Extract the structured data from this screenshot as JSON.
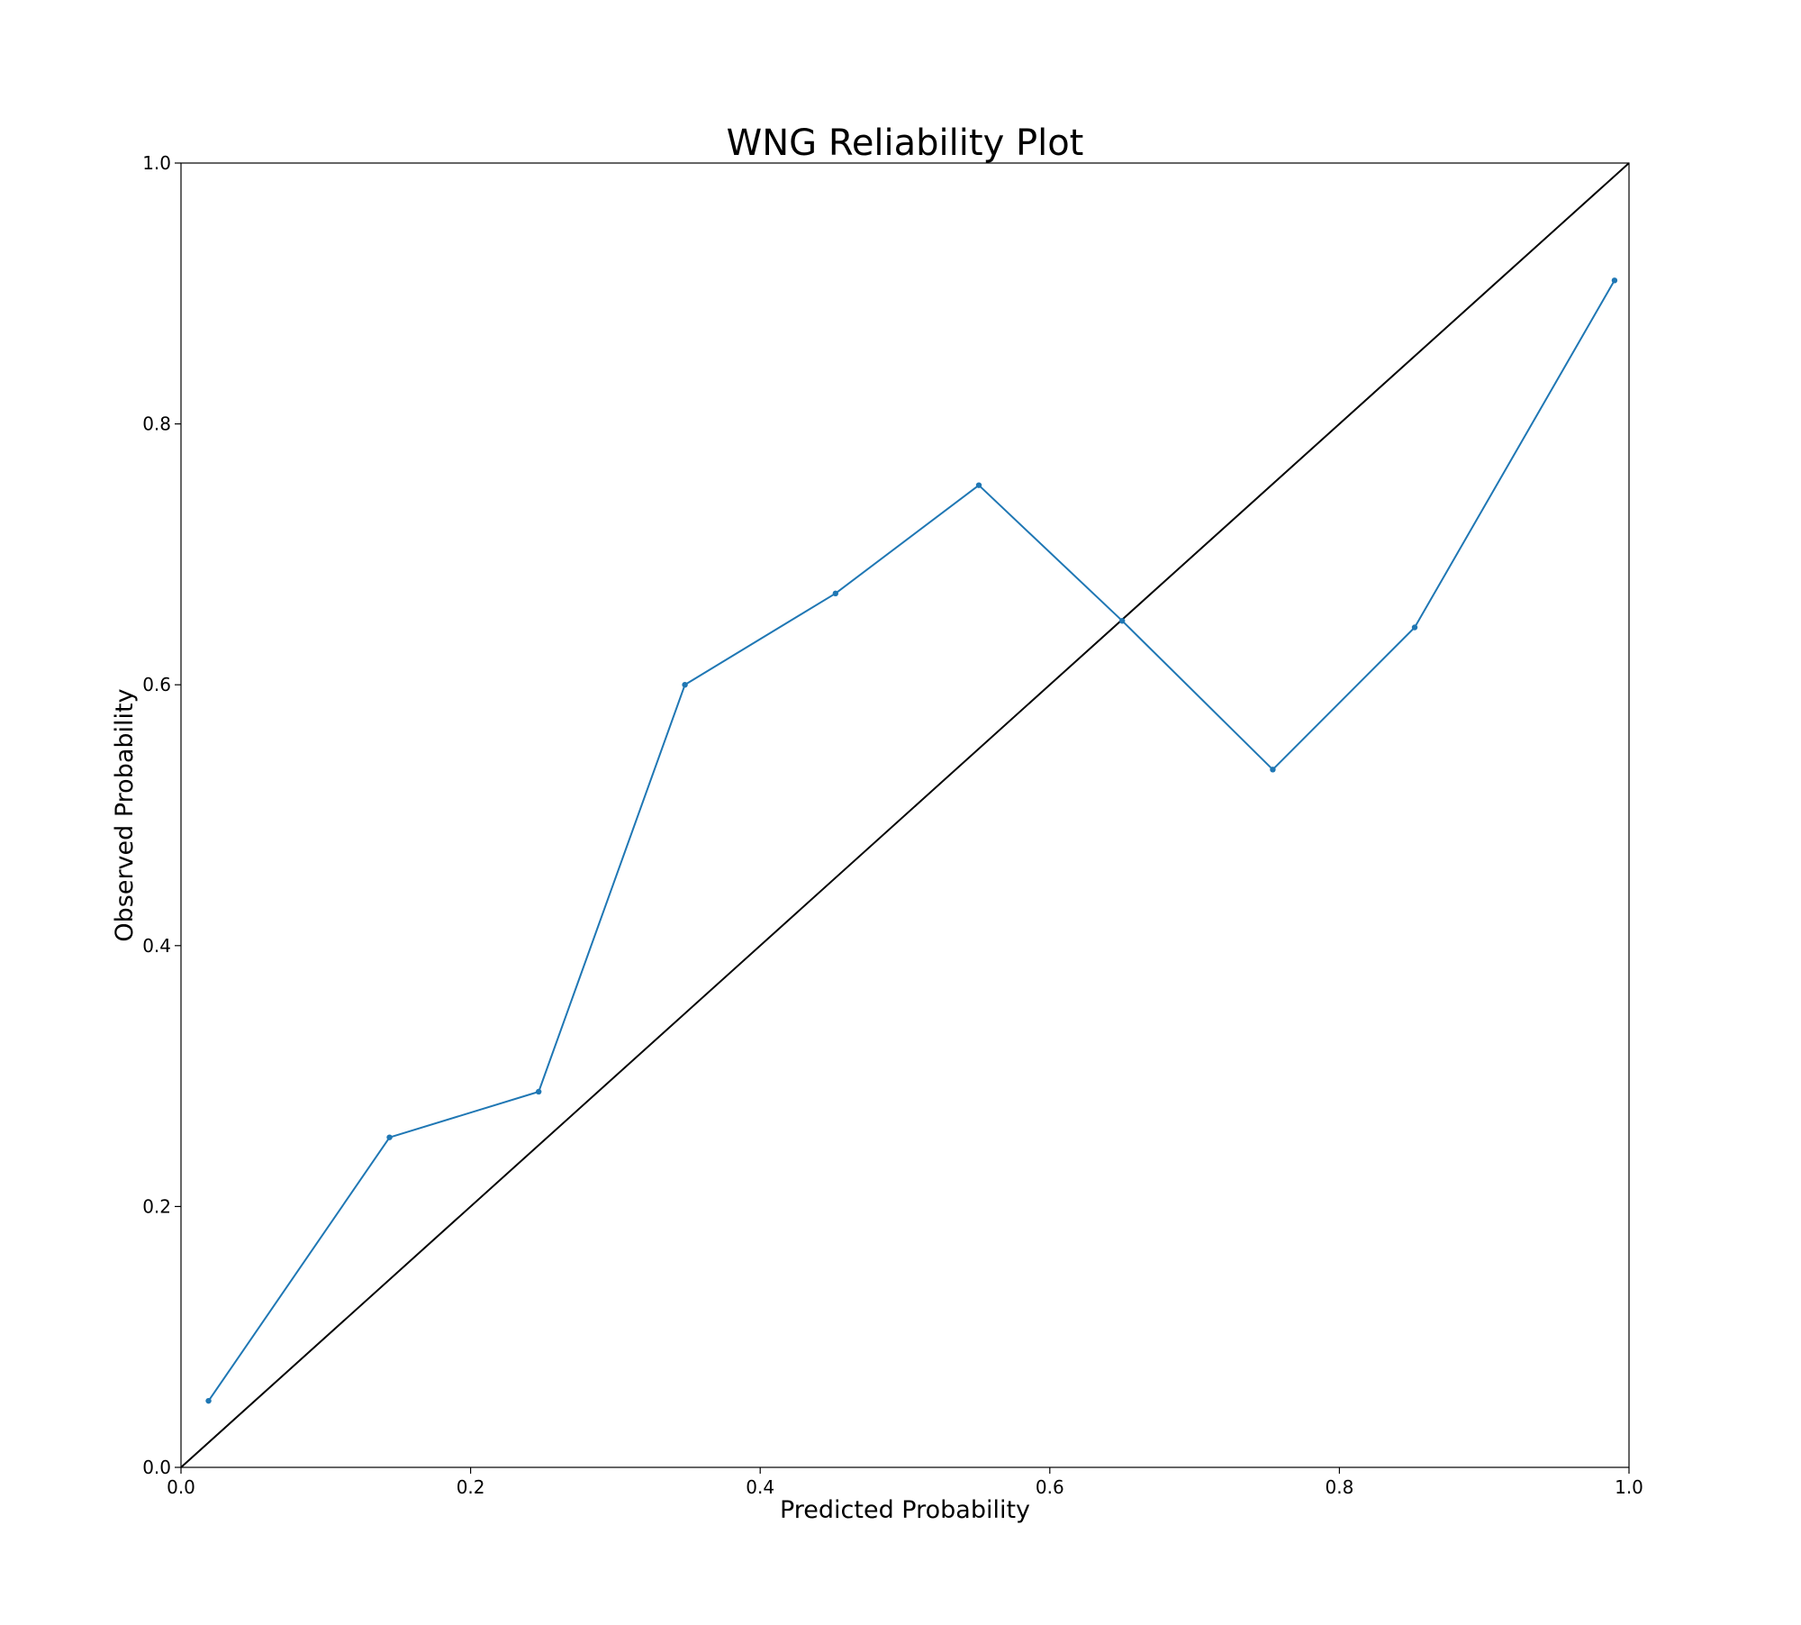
{
  "chart_data": {
    "type": "line",
    "title": "WNG Reliability Plot",
    "xlabel": "Predicted Probability",
    "ylabel": "Observed Probability",
    "xlim": [
      0.0,
      1.0
    ],
    "ylim": [
      0.0,
      1.0
    ],
    "x_ticks": [
      "0.0",
      "0.2",
      "0.4",
      "0.6",
      "0.8",
      "1.0"
    ],
    "y_ticks": [
      "0.0",
      "0.2",
      "0.4",
      "0.6",
      "0.8",
      "1.0"
    ],
    "grid": false,
    "legend": "none",
    "series": [
      {
        "color": "#1f77b4",
        "marker": "dot",
        "x": [
          0.019,
          0.144,
          0.247,
          0.348,
          0.452,
          0.551,
          0.65,
          0.754,
          0.852,
          0.99
        ],
        "y": [
          0.051,
          0.253,
          0.288,
          0.6,
          0.67,
          0.753,
          0.649,
          0.535,
          0.644,
          0.91
        ]
      }
    ],
    "reference_line": {
      "color": "#000000",
      "x": [
        0.0,
        1.0
      ],
      "y": [
        0.0,
        1.0
      ]
    }
  }
}
